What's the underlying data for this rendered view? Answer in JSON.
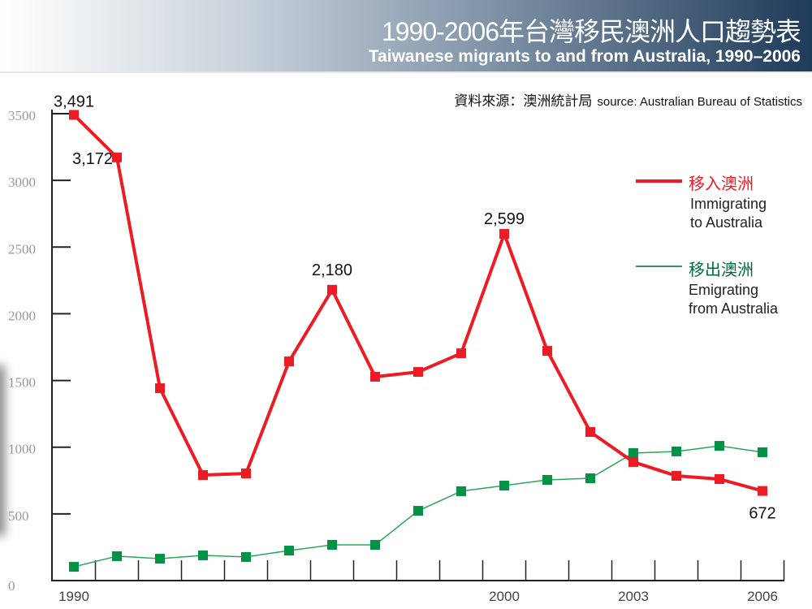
{
  "header": {
    "title_zh": "1990-2006年台灣移民澳洲人口趨勢表",
    "title_en": "Taiwanese migrants to and from Australia, 1990–2006"
  },
  "source": {
    "zh": "資料來源：澳洲統計局",
    "en": "source: Australian Bureau of Statistics"
  },
  "legend": {
    "immigrating": {
      "zh": "移入澳洲",
      "en1": "Immigrating",
      "en2": "to Australia"
    },
    "emigrating": {
      "zh": "移出澳洲",
      "en1": "Emigrating",
      "en2": "from Australia"
    }
  },
  "colors": {
    "immigrating": "#ed1c24",
    "emigrating": "#00903f",
    "marker_green": "#009245"
  },
  "chart_data": {
    "type": "line",
    "title": "Taiwanese migrants to and from Australia, 1990–2006",
    "x": [
      1990,
      1991,
      1992,
      1993,
      1994,
      1995,
      1996,
      1997,
      1998,
      1999,
      2000,
      2001,
      2002,
      2003,
      2004,
      2005,
      2006
    ],
    "x_tick_labels": [
      "1990",
      "2000",
      "2003",
      "2006"
    ],
    "y_tick_labels": [
      "0",
      "500",
      "1000",
      "1500",
      "2000",
      "2500",
      "3000",
      "3500"
    ],
    "ylim": [
      0,
      3500
    ],
    "series": [
      {
        "name": "Immigrating to Australia",
        "values": [
          3491,
          3172,
          1442,
          791,
          803,
          1643,
          2180,
          1528,
          1564,
          1704,
          2599,
          1722,
          1114,
          889,
          785,
          761,
          672
        ]
      },
      {
        "name": "Emigrating from Australia",
        "values": [
          103,
          183,
          164,
          189,
          177,
          225,
          268,
          268,
          523,
          670,
          712,
          755,
          767,
          956,
          968,
          1010,
          962
        ]
      }
    ],
    "annotations": [
      {
        "year": 1990,
        "label": "3,491"
      },
      {
        "year": 1991,
        "label": "3,172"
      },
      {
        "year": 1996,
        "label": "2,180"
      },
      {
        "year": 2000,
        "label": "2,599"
      },
      {
        "year": 2006,
        "label": "672"
      }
    ]
  }
}
